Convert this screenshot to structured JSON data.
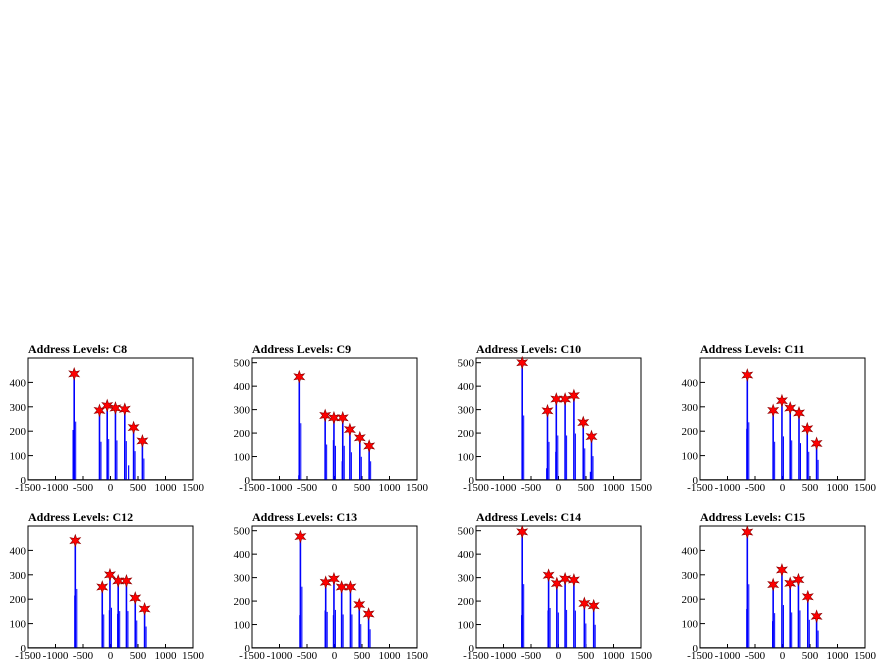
{
  "chart_data": [
    {
      "type": "bar",
      "title": "Address Levels: C8",
      "xlim": [
        -1500,
        1500
      ],
      "ylim": [
        0,
        500
      ],
      "xticks": [
        -1500,
        -1000,
        -500,
        0,
        500,
        1000,
        1500
      ],
      "yticks": [
        0,
        100,
        200,
        300,
        400
      ],
      "peaks_x": [
        -660,
        -200,
        -60,
        90,
        260,
        420,
        580
      ],
      "peaks_y": [
        435,
        285,
        305,
        295,
        290,
        215,
        160
      ],
      "tails": [
        [
          -680,
          205
        ],
        [
          330,
          60
        ]
      ],
      "marker_color": "#ff0000",
      "bar_color": "#0000ff"
    },
    {
      "type": "bar",
      "title": "Address Levels: C9",
      "xlim": [
        -1500,
        1500
      ],
      "ylim": [
        0,
        520
      ],
      "xticks": [
        -1500,
        -1000,
        -500,
        0,
        500,
        1000,
        1500
      ],
      "yticks": [
        0,
        100,
        200,
        300,
        400,
        500
      ],
      "peaks_x": [
        -640,
        -170,
        -10,
        150,
        280,
        460,
        630
      ],
      "peaks_y": [
        440,
        275,
        265,
        265,
        215,
        180,
        145
      ],
      "tails": [
        [
          -650,
          20
        ],
        [
          -20,
          170
        ],
        [
          140,
          80
        ]
      ],
      "marker_color": "#ff0000",
      "bar_color": "#0000ff"
    },
    {
      "type": "bar",
      "title": "Address Levels: C10",
      "xlim": [
        -1500,
        1500
      ],
      "ylim": [
        0,
        520
      ],
      "xticks": [
        -1500,
        -1000,
        -500,
        0,
        500,
        1000,
        1500
      ],
      "yticks": [
        0,
        100,
        200,
        300,
        400,
        500
      ],
      "peaks_x": [
        -660,
        -200,
        -40,
        120,
        280,
        450,
        600
      ],
      "peaks_y": [
        500,
        295,
        345,
        345,
        360,
        245,
        185
      ],
      "tails": [
        [
          -215,
          50
        ],
        [
          -50,
          120
        ],
        [
          580,
          35
        ]
      ],
      "marker_color": "#ff0000",
      "bar_color": "#0000ff"
    },
    {
      "type": "bar",
      "title": "Address Levels: C11",
      "xlim": [
        -1500,
        1500
      ],
      "ylim": [
        0,
        500
      ],
      "xticks": [
        -1500,
        -1000,
        -500,
        0,
        500,
        1000,
        1500
      ],
      "yticks": [
        0,
        100,
        200,
        300,
        400
      ],
      "peaks_x": [
        -640,
        -170,
        -10,
        140,
        300,
        450,
        620
      ],
      "peaks_y": [
        430,
        285,
        325,
        295,
        275,
        210,
        150
      ],
      "tails": [
        [
          -650,
          210
        ]
      ],
      "marker_color": "#ff0000",
      "bar_color": "#0000ff"
    },
    {
      "type": "bar",
      "title": "Address Levels: C12",
      "xlim": [
        -1500,
        1500
      ],
      "ylim": [
        0,
        500
      ],
      "xticks": [
        -1500,
        -1000,
        -500,
        0,
        500,
        1000,
        1500
      ],
      "yticks": [
        0,
        100,
        200,
        300,
        400
      ],
      "peaks_x": [
        -640,
        -150,
        -10,
        140,
        290,
        450,
        620
      ],
      "peaks_y": [
        440,
        250,
        300,
        275,
        275,
        205,
        160
      ],
      "tails": [
        [
          -650,
          215
        ],
        [
          -20,
          155
        ],
        [
          130,
          140
        ]
      ],
      "marker_color": "#ff0000",
      "bar_color": "#0000ff"
    },
    {
      "type": "bar",
      "title": "Address Levels: C13",
      "xlim": [
        -1500,
        1500
      ],
      "ylim": [
        0,
        520
      ],
      "xticks": [
        -1500,
        -1000,
        -500,
        0,
        500,
        1000,
        1500
      ],
      "yticks": [
        0,
        100,
        200,
        300,
        400,
        500
      ],
      "peaks_x": [
        -620,
        -160,
        -10,
        130,
        290,
        450,
        620
      ],
      "peaks_y": [
        475,
        280,
        295,
        260,
        260,
        185,
        145
      ],
      "tails": [
        [
          -630,
          140
        ],
        [
          -170,
          160
        ],
        [
          -20,
          140
        ]
      ],
      "marker_color": "#ff0000",
      "bar_color": "#0000ff"
    },
    {
      "type": "bar",
      "title": "Address Levels: C14",
      "xlim": [
        -1500,
        1500
      ],
      "ylim": [
        0,
        520
      ],
      "xticks": [
        -1500,
        -1000,
        -500,
        0,
        500,
        1000,
        1500
      ],
      "yticks": [
        0,
        100,
        200,
        300,
        400,
        500
      ],
      "peaks_x": [
        -660,
        -180,
        -30,
        120,
        280,
        470,
        640
      ],
      "peaks_y": [
        495,
        310,
        275,
        295,
        290,
        190,
        180
      ],
      "tails": [
        [
          -670,
          140
        ],
        [
          -190,
          160
        ]
      ],
      "marker_color": "#ff0000",
      "bar_color": "#0000ff"
    },
    {
      "type": "bar",
      "title": "Address Levels: C15",
      "xlim": [
        -1500,
        1500
      ],
      "ylim": [
        0,
        500
      ],
      "xticks": [
        -1500,
        -1000,
        -500,
        0,
        500,
        1000,
        1500
      ],
      "yticks": [
        0,
        100,
        200,
        300,
        400
      ],
      "peaks_x": [
        -640,
        -170,
        -10,
        140,
        290,
        460,
        620
      ],
      "peaks_y": [
        475,
        260,
        320,
        265,
        280,
        210,
        130
      ],
      "tails": [
        [
          -650,
          160
        ],
        [
          -180,
          110
        ]
      ],
      "marker_color": "#ff0000",
      "bar_color": "#0000ff"
    }
  ]
}
